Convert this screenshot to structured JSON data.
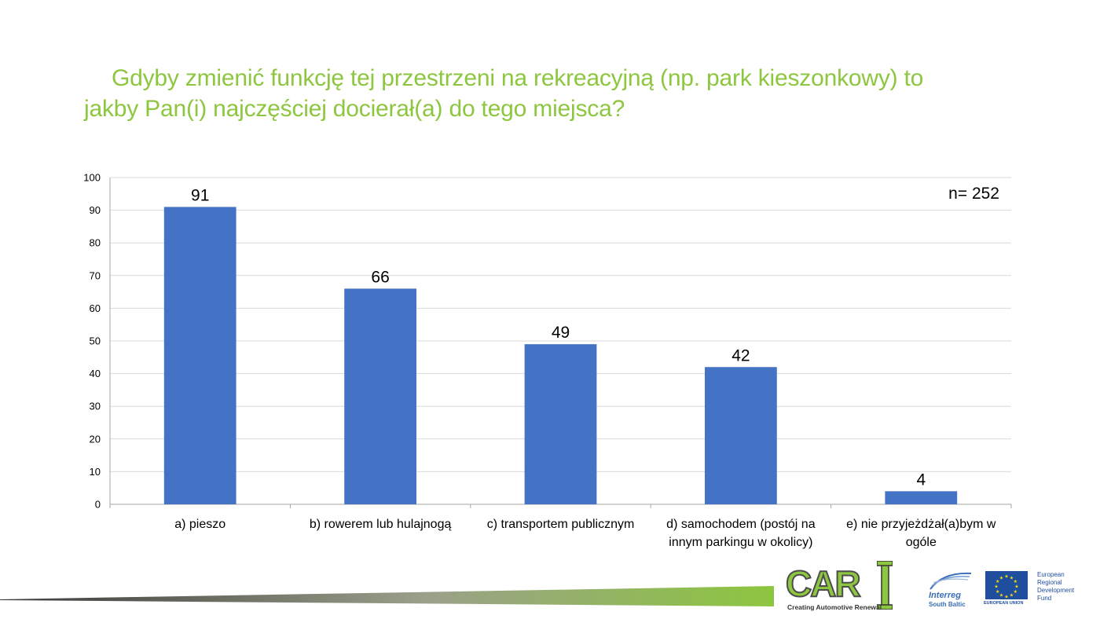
{
  "title": {
    "line1": "Gdyby zmienić funkcję tej przestrzeni na rekreacyjną (np. park kieszonkowy) to",
    "line2": "jakby Pan(i) najczęściej docierał(a) do tego miejsca?"
  },
  "chart_data": {
    "type": "bar",
    "categories": [
      [
        "a) pieszo"
      ],
      [
        "b) rowerem lub hulajnogą"
      ],
      [
        "c) transportem publicznym"
      ],
      [
        "d) samochodem (postój na",
        "innym parkingu w okolicy)"
      ],
      [
        "e) nie przyjeżdżał(a)bym w",
        "ogóle"
      ]
    ],
    "values": [
      91,
      66,
      49,
      42,
      4
    ],
    "ylim": [
      0,
      100
    ],
    "yticks": [
      0,
      10,
      20,
      30,
      40,
      50,
      60,
      70,
      80,
      90,
      100
    ],
    "grid": true,
    "bar_color": "#4472c4",
    "annotation": "n= 252"
  },
  "footer": {
    "car_logo": "CAR",
    "car_tagline": "Creating Automotive Renewal",
    "interreg_name": "Interreg",
    "interreg_sub": "South Baltic",
    "eu_label": "EUROPEAN UNION",
    "erdf_lines": [
      "European",
      "Regional",
      "Development",
      "Fund"
    ],
    "accent_color": "#8dc63f"
  }
}
